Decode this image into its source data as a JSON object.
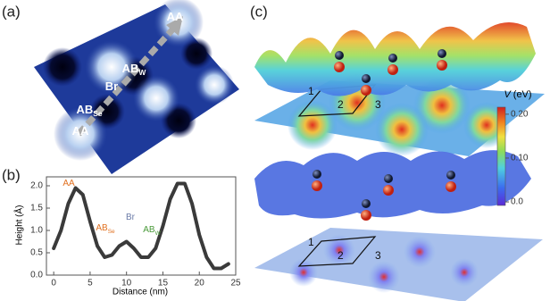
{
  "panel_a": {
    "label": "(a)",
    "sites": [
      {
        "text": "AA"
      },
      {
        "text": "AB",
        "sub": "W"
      },
      {
        "text": "Br"
      },
      {
        "text": "AB",
        "sub": "Se"
      },
      {
        "text": "AA"
      }
    ]
  },
  "chart_data": {
    "type": "line",
    "label": "(b)",
    "x_label": "Distance (nm)",
    "y_label": "Height (Å)",
    "x": [
      0,
      1,
      2,
      3,
      4,
      5,
      6,
      7,
      8,
      9,
      10,
      11,
      12,
      13,
      14,
      15,
      16,
      17,
      18,
      19,
      20,
      21,
      22,
      23,
      24
    ],
    "values": [
      0.6,
      1.0,
      1.6,
      1.95,
      1.8,
      1.2,
      0.65,
      0.4,
      0.45,
      0.65,
      0.75,
      0.6,
      0.4,
      0.4,
      0.6,
      1.1,
      1.7,
      2.05,
      2.05,
      1.6,
      0.9,
      0.4,
      0.15,
      0.15,
      0.25
    ],
    "color": "#3a3a3a",
    "xlim": [
      -1,
      25
    ],
    "xticks": [
      0,
      5,
      10,
      15,
      20,
      25
    ],
    "ylim": [
      0,
      2.2
    ],
    "yticks": [
      {
        "value": 0,
        "label": "0.0"
      },
      0.5,
      {
        "value": 1,
        "label": "1.0"
      },
      1.5,
      {
        "value": 2,
        "label": "2.0"
      }
    ],
    "annotations": [
      {
        "text": "AA",
        "color": "#e07020"
      },
      {
        "text": "AB",
        "sub": "Se",
        "color": "#e07020"
      },
      {
        "text": "Br",
        "color": "#6a7aa8"
      },
      {
        "text": "AB",
        "sub": "W",
        "color": "#4a9a3a"
      }
    ]
  },
  "panel_c": {
    "label": "(c)",
    "top_labels": [
      "1",
      "2",
      "3"
    ],
    "bottom_labels": [
      "1",
      "2",
      "3"
    ],
    "colorbar": {
      "title": "V",
      "unit": "(eV)",
      "lim": [
        -0.008,
        0.216
      ],
      "ticks": [
        {
          "value": 0,
          "label": "0.0"
        },
        {
          "value": 0.1,
          "label": "0.10"
        },
        {
          "value": 0.2,
          "label": "0.20"
        }
      ]
    }
  }
}
